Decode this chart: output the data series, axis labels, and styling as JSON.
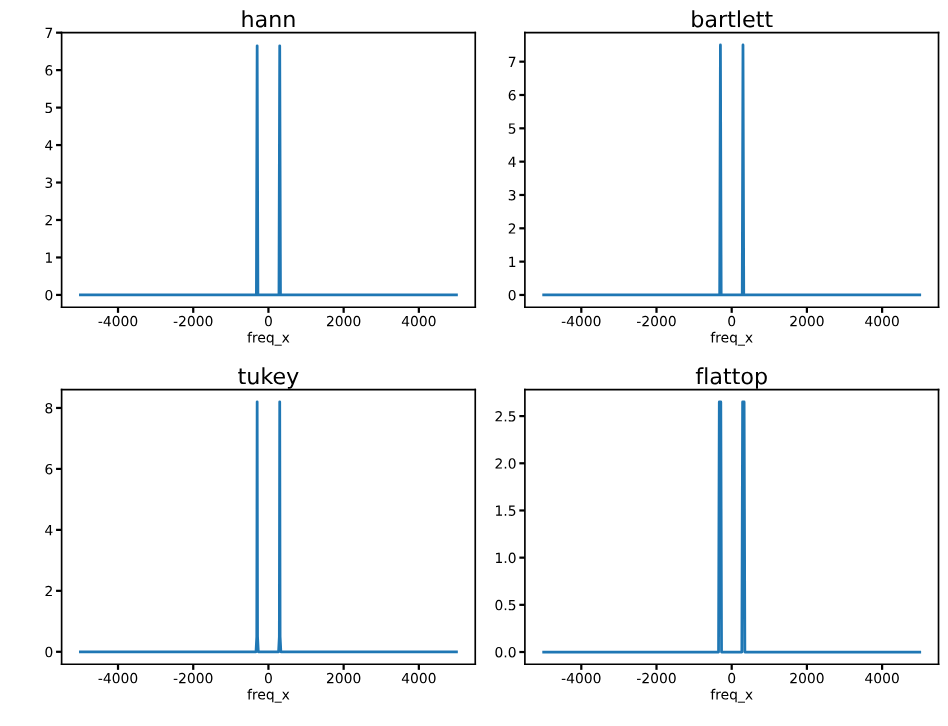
{
  "chart_data": [
    {
      "type": "line",
      "title": "hann",
      "xlabel": "freq_x",
      "xlim": [
        -5500,
        5500
      ],
      "xticks": [
        -4000,
        -2000,
        0,
        2000,
        4000
      ],
      "ylim": [
        -0.33,
        7
      ],
      "yticks": [
        0,
        1,
        2,
        3,
        4,
        5,
        6,
        7
      ],
      "grid": false,
      "legend": false,
      "series": [
        {
          "color": "#1f77b4",
          "x": [
            -5000,
            -320,
            -300,
            -280,
            280,
            300,
            320,
            5000
          ],
          "values": [
            0,
            0,
            6.65,
            0,
            0,
            6.65,
            0,
            0
          ]
        }
      ]
    },
    {
      "type": "line",
      "title": "bartlett",
      "xlabel": "freq_x",
      "xlim": [
        -5500,
        5500
      ],
      "xticks": [
        -4000,
        -2000,
        0,
        2000,
        4000
      ],
      "ylim": [
        -0.37,
        7.87
      ],
      "yticks": [
        0,
        1,
        2,
        3,
        4,
        5,
        6,
        7
      ],
      "grid": false,
      "legend": false,
      "series": [
        {
          "color": "#1f77b4",
          "x": [
            -5000,
            -320,
            -300,
            -280,
            280,
            300,
            320,
            5000
          ],
          "values": [
            0,
            0,
            7.5,
            0,
            0,
            7.5,
            0,
            0
          ]
        }
      ]
    },
    {
      "type": "line",
      "title": "tukey",
      "xlabel": "freq_x",
      "xlim": [
        -5500,
        5500
      ],
      "xticks": [
        -4000,
        -2000,
        0,
        2000,
        4000
      ],
      "ylim": [
        -0.41,
        8.6
      ],
      "yticks": [
        0,
        2,
        4,
        6,
        8
      ],
      "grid": false,
      "legend": false,
      "series": [
        {
          "color": "#1f77b4",
          "x": [
            -5000,
            -330,
            -310,
            -300,
            -290,
            -270,
            270,
            290,
            300,
            310,
            330,
            5000
          ],
          "values": [
            0,
            0,
            0.5,
            8.2,
            0.5,
            0,
            0,
            0.5,
            8.2,
            0.5,
            0,
            0
          ]
        }
      ]
    },
    {
      "type": "line",
      "title": "flattop",
      "xlabel": "freq_x",
      "xlim": [
        -5500,
        5500
      ],
      "xticks": [
        -4000,
        -2000,
        0,
        2000,
        4000
      ],
      "ylim": [
        -0.13,
        2.78
      ],
      "yticks": [
        {
          "value": 0,
          "label": "0.0"
        },
        {
          "value": 0.5,
          "label": "0.5"
        },
        {
          "value": 1,
          "label": "1.0"
        },
        {
          "value": 1.5,
          "label": "1.5"
        },
        {
          "value": 2,
          "label": "2.0"
        },
        {
          "value": 2.5,
          "label": "2.5"
        }
      ],
      "grid": false,
      "legend": false,
      "series": [
        {
          "color": "#1f77b4",
          "x": [
            -5000,
            -350,
            -330,
            -290,
            -270,
            270,
            290,
            330,
            350,
            5000
          ],
          "values": [
            0,
            0,
            2.65,
            2.65,
            0,
            0,
            2.65,
            2.65,
            0,
            0
          ]
        }
      ]
    }
  ]
}
